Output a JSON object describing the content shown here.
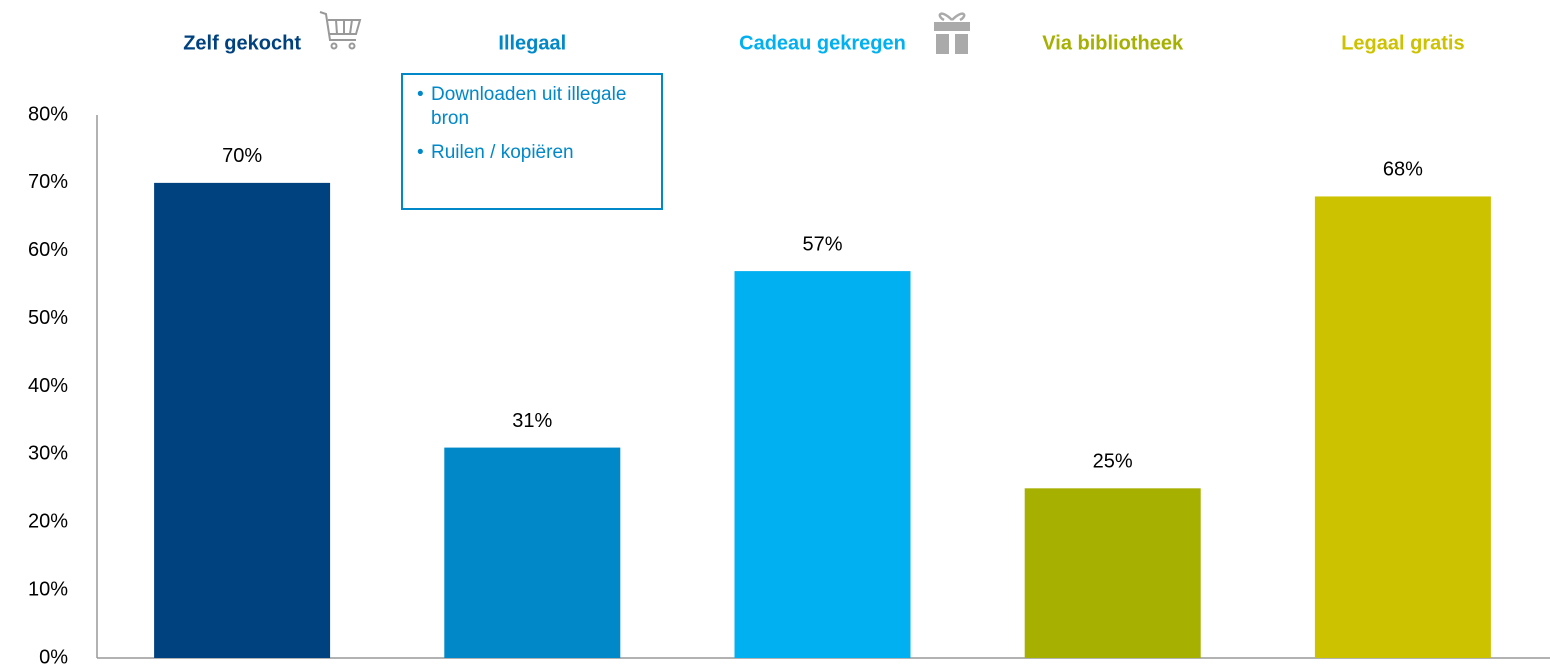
{
  "chart_data": {
    "type": "bar",
    "categories": [
      "Zelf gekocht",
      "Illegaal",
      "Cadeau gekregen",
      "Via bibliotheek",
      "Legaal gratis"
    ],
    "values": [
      70,
      31,
      57,
      25,
      68
    ],
    "value_labels": [
      "70%",
      "31%",
      "57%",
      "25%",
      "68%"
    ],
    "colors": [
      "#00427f",
      "#0088c8",
      "#00b0f0",
      "#a6b000",
      "#ccc200"
    ],
    "ylim": [
      0,
      80
    ],
    "yticks": [
      {
        "value": 0,
        "label": "0%"
      },
      {
        "value": 10,
        "label": "10%"
      },
      {
        "value": 20,
        "label": "20%"
      },
      {
        "value": 30,
        "label": "30%"
      },
      {
        "value": 40,
        "label": "40%"
      },
      {
        "value": 50,
        "label": "50%"
      },
      {
        "value": 60,
        "label": "60%"
      },
      {
        "value": 70,
        "label": "70%"
      },
      {
        "value": 80,
        "label": "80%"
      }
    ],
    "grid": false,
    "annotation": {
      "category": "Illegaal",
      "items": [
        "Downloaden uit illegale bron",
        "Ruilen / kopiëren"
      ]
    }
  }
}
